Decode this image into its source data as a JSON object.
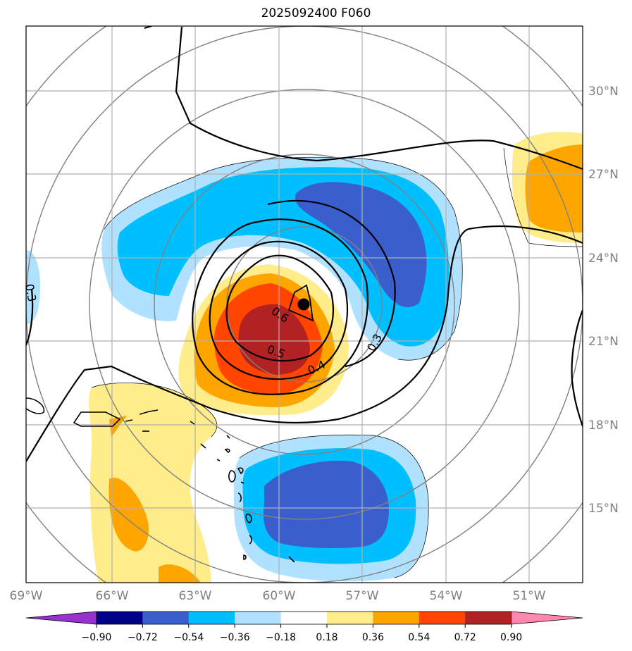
{
  "title": "2025092400 F060",
  "map": {
    "lat_labels": [
      "30°N",
      "27°N",
      "24°N",
      "21°N",
      "18°N",
      "15°N"
    ],
    "lon_labels": [
      "69°W",
      "66°W",
      "63°W",
      "60°W",
      "57°W",
      "54°W",
      "51°W"
    ],
    "contour_labels": [
      "0.3",
      "0.3",
      "0.4",
      "0.5",
      "0.6"
    ],
    "center_marker": "storm-center-dot"
  },
  "colorbar": {
    "ticks": [
      "−0.90",
      "−0.72",
      "−0.54",
      "−0.36",
      "−0.18",
      "0.18",
      "0.36",
      "0.54",
      "0.72",
      "0.90"
    ],
    "colors": [
      "#9932CC",
      "#00008B",
      "#3A5FCD",
      "#00BFFF",
      "#B0E2FF",
      "#FFFFFF",
      "#FFEC8B",
      "#FFA500",
      "#FF4500",
      "#B22222",
      "#FF88B0"
    ]
  }
}
